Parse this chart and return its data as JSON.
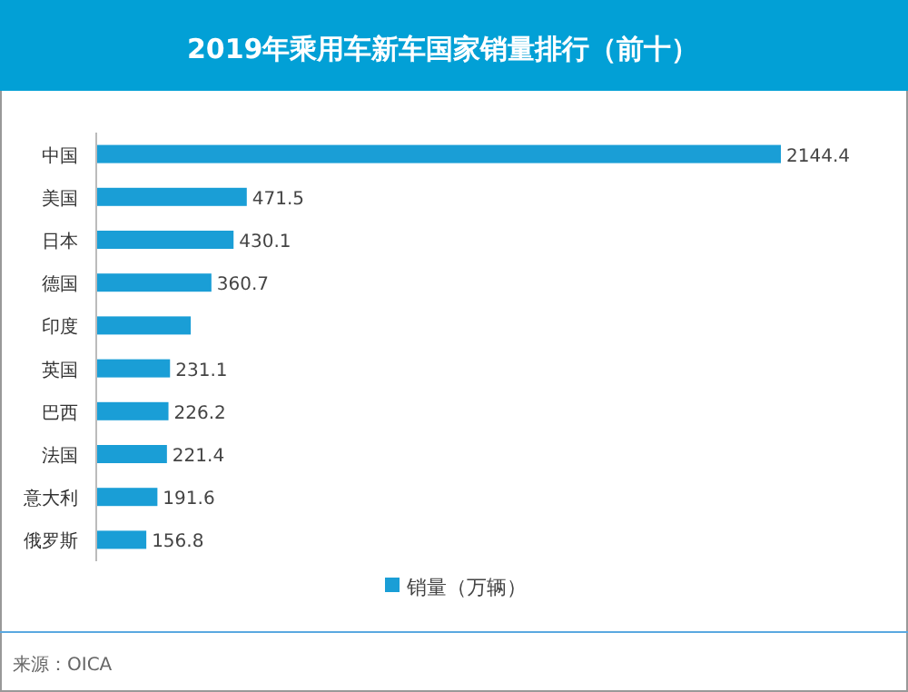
{
  "chart_data": {
    "type": "bar",
    "orientation": "horizontal",
    "title": "2019年乘用车新车国家销量排行（前十）",
    "categories": [
      "中国",
      "美国",
      "日本",
      "德国",
      "印度",
      "英国",
      "巴西",
      "法国",
      "意大利",
      "俄罗斯"
    ],
    "series": [
      {
        "name": "销量（万辆）",
        "color": "#1a9ed6",
        "values": [
          2144.4,
          471.5,
          430.1,
          360.7,
          296,
          231.1,
          226.2,
          221.4,
          191.6,
          156.8
        ],
        "value_labels": [
          "2144.4",
          "471.5",
          "430.1",
          "360.7",
          null,
          "231.1",
          "226.2",
          "221.4",
          "191.6",
          "156.8"
        ]
      }
    ],
    "legend": "bottom",
    "annotations": [
      "来源：OICA"
    ]
  }
}
